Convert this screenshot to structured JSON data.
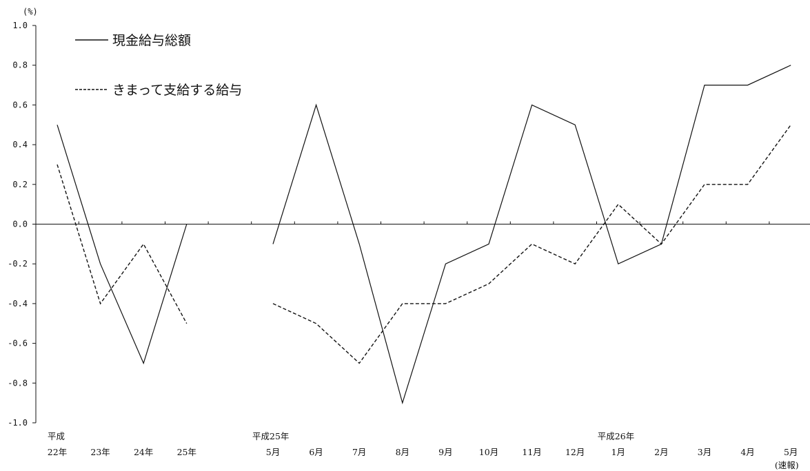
{
  "chart_data": {
    "type": "line",
    "y_unit": "(%)",
    "ylim": [
      -1.0,
      1.0
    ],
    "y_ticks": [
      "1.0",
      "0.8",
      "0.6",
      "0.4",
      "0.2",
      "0.0",
      "-0.2",
      "-0.4",
      "-0.6",
      "-0.8",
      "-1.0"
    ],
    "y_tick_values": [
      1.0,
      0.8,
      0.6,
      0.4,
      0.2,
      0.0,
      -0.2,
      -0.4,
      -0.6,
      -0.8,
      -1.0
    ],
    "grid": false,
    "legend_position": "top-left",
    "categories": [
      {
        "top": "平成",
        "bottom": "22年"
      },
      {
        "top": "",
        "bottom": "23年"
      },
      {
        "top": "",
        "bottom": "24年"
      },
      {
        "top": "",
        "bottom": "25年"
      },
      {
        "top": "",
        "bottom": ""
      },
      {
        "top": "平成25年",
        "bottom": "5月"
      },
      {
        "top": "",
        "bottom": "6月"
      },
      {
        "top": "",
        "bottom": "7月"
      },
      {
        "top": "",
        "bottom": "8月"
      },
      {
        "top": "",
        "bottom": "9月"
      },
      {
        "top": "",
        "bottom": "10月"
      },
      {
        "top": "",
        "bottom": "11月"
      },
      {
        "top": "",
        "bottom": "12月"
      },
      {
        "top": "平成26年",
        "bottom": "1月"
      },
      {
        "top": "",
        "bottom": "2月"
      },
      {
        "top": "",
        "bottom": "3月"
      },
      {
        "top": "",
        "bottom": "4月"
      },
      {
        "top": "",
        "bottom": "5月",
        "note": "(速報)"
      }
    ],
    "series": [
      {
        "name": "現金給与総額",
        "style": "solid",
        "values": [
          0.5,
          -0.2,
          -0.7,
          0.0,
          null,
          -0.1,
          0.6,
          -0.1,
          -0.9,
          -0.2,
          -0.1,
          0.6,
          0.5,
          -0.2,
          -0.1,
          0.7,
          0.7,
          0.8
        ]
      },
      {
        "name": "きまって支給する給与",
        "style": "dashed",
        "values": [
          0.3,
          -0.4,
          -0.1,
          -0.5,
          null,
          -0.4,
          -0.5,
          -0.7,
          -0.4,
          -0.4,
          -0.3,
          -0.1,
          -0.2,
          0.1,
          -0.1,
          0.2,
          0.2,
          0.5
        ]
      }
    ]
  }
}
